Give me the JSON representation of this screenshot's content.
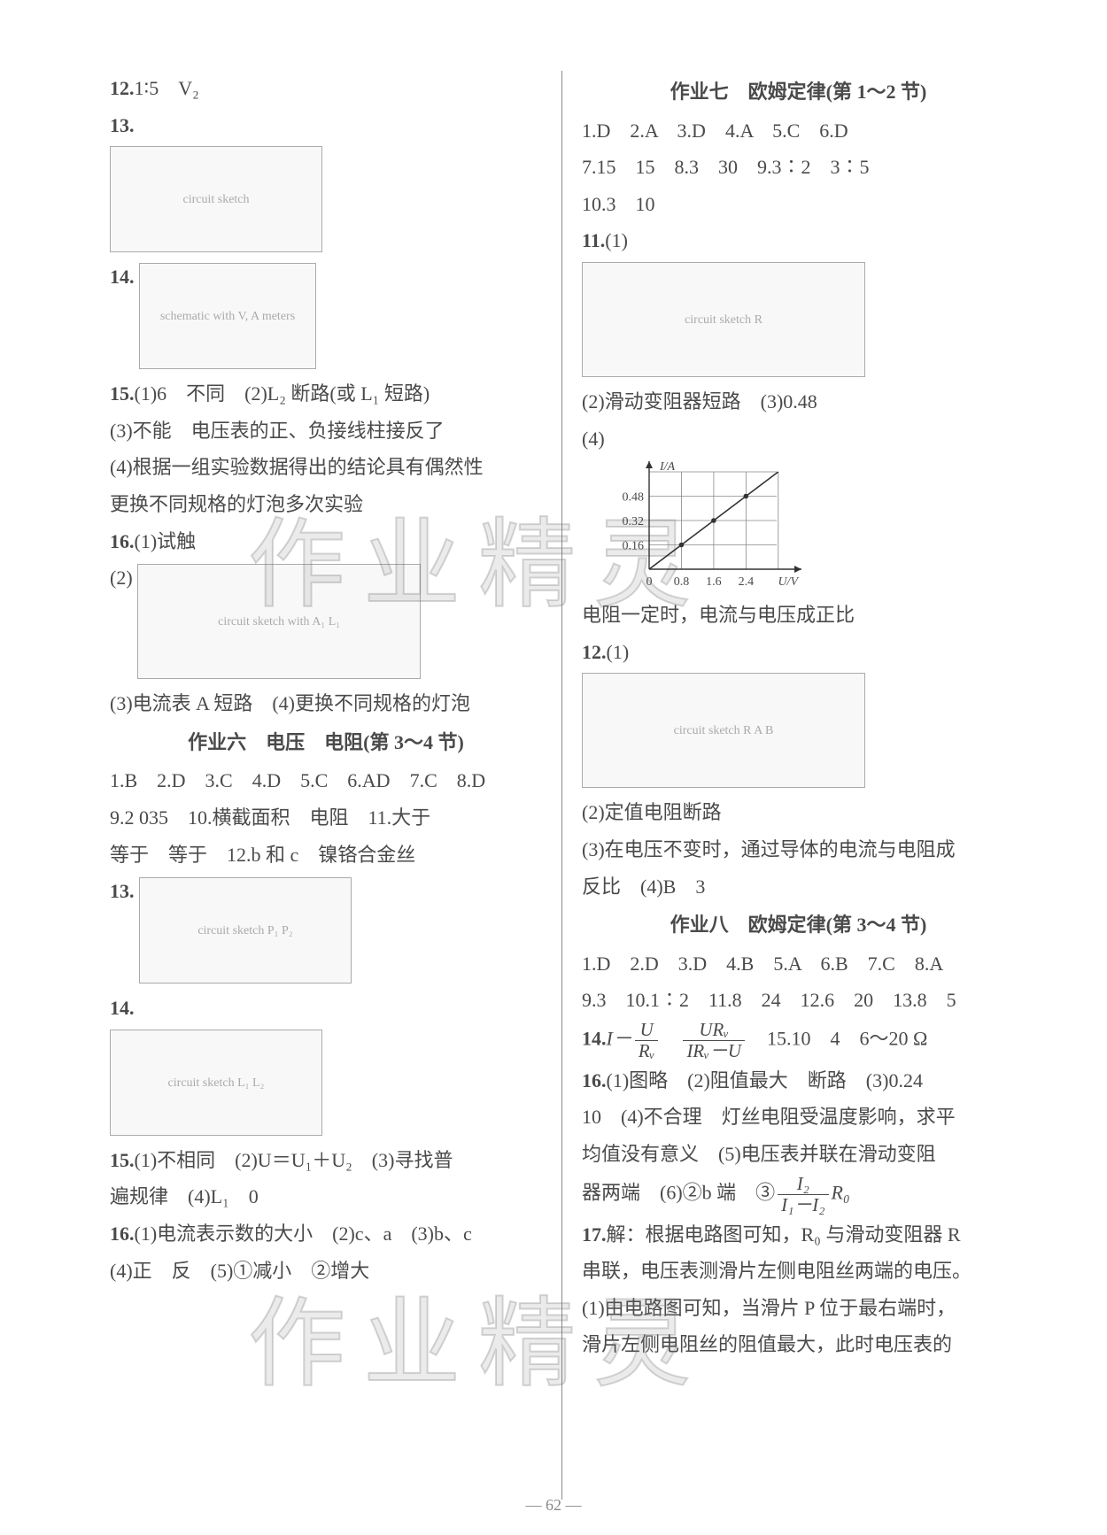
{
  "watermark": "作业精灵",
  "page_number": "— 62 —",
  "left_column": {
    "q12": {
      "label": "12.",
      "ans": "1∶5　V₂"
    },
    "q13": {
      "label": "13.",
      "img_alt": "circuit sketch"
    },
    "q14": {
      "label": "14.",
      "img_alt": "schematic with V, A meters"
    },
    "q15": {
      "label": "15.",
      "p1": "(1)6　不同　(2)L₂ 断路(或 L₁ 短路)",
      "p2": "(3)不能　电压表的正、负接线柱接反了",
      "p3": "(4)根据一组实验数据得出的结论具有偶然性",
      "p4": "更换不同规格的灯泡多次实验"
    },
    "q16": {
      "label": "16.",
      "p1": "(1)试触",
      "p2_label": "(2)",
      "img_alt": "circuit sketch with A₁ L₁",
      "p3": "(3)电流表 A 短路　(4)更换不同规格的灯泡"
    },
    "hw6": {
      "title": "作业六　电压　电阻(第 3～4 节)",
      "mc": "1.B　2.D　3.C　4.D　5.C　6.AD　7.C　8.D",
      "p9": "9.2 035　10.横截面积　电阻　11.大于",
      "p11b": "等于　等于　12.b 和 c　镍铬合金丝"
    },
    "q13b": {
      "label": "13.",
      "img_alt": "circuit sketch P₁ P₂"
    },
    "q14b": {
      "label": "14.",
      "img_alt": "circuit sketch L₁ L₂"
    },
    "q15b": {
      "label": "15.",
      "p1": "(1)不相同　(2)U＝U₁＋U₂　(3)寻找普",
      "p2": "遍规律　(4)L₁　0"
    },
    "q16b": {
      "label": "16.",
      "p1": "(1)电流表示数的大小　(2)c、a　(3)b、c",
      "p2": "(4)正　反　(5)①减小　②增大"
    }
  },
  "right_column": {
    "hw7": {
      "title": "作业七　欧姆定律(第 1～2 节)",
      "mc": "1.D　2.A　3.D　4.A　5.C　6.D",
      "p7": "7.15　15　8.3　30　9.3∶2　3∶5",
      "p10": "10.3　10"
    },
    "q11": {
      "label": "11.",
      "p1": "(1)",
      "img_alt": "circuit sketch R",
      "p2": "(2)滑动变阻器短路　(3)0.48",
      "p4_label": "(4)"
    },
    "graph": {
      "y_label": "I/A",
      "x_label": "U/V",
      "y_ticks": [
        "0.16",
        "0.32",
        "0.48"
      ],
      "x_ticks": [
        "0",
        "0.8",
        "1.6",
        "2.4"
      ],
      "points": [
        [
          0,
          0
        ],
        [
          0.8,
          0.16
        ],
        [
          1.6,
          0.32
        ],
        [
          2.4,
          0.48
        ]
      ],
      "xlim": [
        0,
        3.6
      ],
      "ylim": [
        0,
        0.64
      ],
      "grid_color": "#888",
      "line_color": "#333",
      "axis_color": "#333",
      "text_color": "#4a4a4a",
      "font_size": 14
    },
    "q11p5": "电阻一定时，电流与电压成正比",
    "q12": {
      "label": "12.",
      "p1": "(1)",
      "img_alt": "circuit sketch R A B",
      "p2": "(2)定值电阻断路",
      "p3": "(3)在电压不变时，通过导体的电流与电阻成",
      "p4": "反比　(4)B　3"
    },
    "hw8": {
      "title": "作业八　欧姆定律(第 3～4 节)",
      "mc": "1.D　2.D　3.D　4.B　5.A　6.B　7.C　8.A",
      "p9": "9.3　10.1∶2　11.8　24　12.6　20　13.8　5"
    },
    "q14": {
      "label": "14.",
      "pre": "I－",
      "frac1_num": "U",
      "frac1_den": "Rᵥ",
      "mid": "　",
      "frac2_num": "URᵥ",
      "frac2_den": "IRᵥ－U",
      "post": "　15.10　4　6～20 Ω"
    },
    "q16": {
      "label": "16.",
      "p1": "(1)图略　(2)阻值最大　断路　(3)0.24",
      "p2": "10　(4)不合理　灯丝电阻受温度影响，求平",
      "p3": "均值没有意义　(5)电压表并联在滑动变阻",
      "p4": "器两端　(6)②b 端　③",
      "frac_num": "I₂",
      "frac_den": "I₁－I₂",
      "p4_post": "R₀"
    },
    "q17": {
      "label": "17.",
      "p1": "解：根据电路图可知，R₀ 与滑动变阻器 R",
      "p2": "串联，电压表测滑片左侧电阻丝两端的电压。",
      "p3": "(1)由电路图可知，当滑片 P 位于最右端时，",
      "p4": "滑片左侧电阻丝的阻值最大，此时电压表的"
    }
  }
}
